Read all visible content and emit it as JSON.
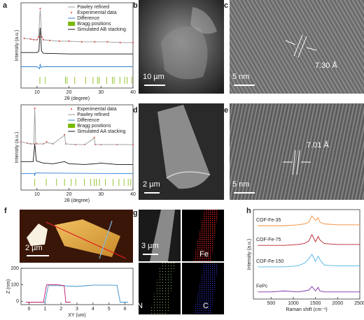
{
  "chart_data": [
    {
      "type": "line",
      "panel": "a",
      "xlim": [
        5,
        40
      ],
      "xticks": [
        10,
        20,
        30,
        40
      ],
      "ylim": [
        0,
        120
      ],
      "xlabel": "2θ (degree)",
      "ylabel": "Intensity (a.u.)",
      "legend": "upper right",
      "series": [
        {
          "name": "Pawley refined",
          "mode": "line",
          "color": "#9a9a9a",
          "x": [
            6,
            8,
            9,
            10,
            10.5,
            11,
            11.5,
            12,
            14,
            17,
            20,
            24,
            28,
            32,
            36,
            40
          ],
          "values": [
            70,
            69,
            68,
            68,
            72,
            110,
            72,
            68,
            67,
            66,
            66,
            65,
            65,
            65,
            64,
            64
          ]
        },
        {
          "name": "Experimental data",
          "mode": "dots",
          "color": "#e3342f",
          "x": [
            6,
            8,
            9,
            10,
            10.5,
            11,
            11.5,
            12,
            14,
            17,
            20,
            24,
            28,
            32,
            36,
            40
          ],
          "values": [
            70,
            69,
            68,
            68,
            72,
            112,
            72,
            68,
            67,
            66,
            66,
            65,
            65,
            65,
            64,
            64
          ]
        },
        {
          "name": "Difference",
          "mode": "line",
          "color": "#2f7fd0",
          "x": [
            5,
            10,
            10.8,
            11,
            11.2,
            12,
            40
          ],
          "values": [
            30,
            30,
            27,
            34,
            29,
            30,
            30
          ]
        },
        {
          "name": "Bragg positions",
          "mode": "ticks",
          "color": "#7ab800",
          "x": [
            10.9,
            12.6,
            18.9,
            19.4,
            21.8,
            25.2,
            27.5,
            28.9,
            29.4,
            31.8,
            33.6,
            34.1,
            35.9,
            37.4,
            38.2,
            39.6
          ]
        },
        {
          "name": "Simulated AB stacking",
          "mode": "line",
          "color": "#111111",
          "x": [
            5,
            10,
            10.6,
            11,
            11.4,
            12,
            20,
            40
          ],
          "values": [
            50,
            50,
            52,
            85,
            52,
            49,
            48,
            48
          ]
        }
      ]
    },
    {
      "type": "line",
      "xlim": [
        5,
        40
      ],
      "xticks": [
        10,
        20,
        30,
        40
      ],
      "ylim": [
        0,
        120
      ],
      "xlabel": "2θ (degree)",
      "ylabel": "Intensity (a.u.)",
      "legend": "upper right",
      "series": [
        {
          "name": "Experimental data",
          "mode": "dots",
          "color": "#e3342f",
          "x": [
            5,
            7,
            8,
            9,
            9.3,
            9.6,
            10,
            12,
            13,
            15,
            18.6,
            19,
            22,
            25,
            27.9,
            28.2,
            30,
            35,
            40
          ],
          "values": [
            68,
            66,
            65,
            65,
            115,
            66,
            65,
            65,
            68,
            65,
            78,
            65,
            64,
            64,
            74,
            64,
            64,
            64,
            64
          ]
        },
        {
          "name": "Pawley refined",
          "mode": "line",
          "color": "#9a9a9a",
          "x": [
            5,
            7,
            8,
            9,
            9.3,
            9.6,
            10,
            12,
            13,
            15,
            18.6,
            19,
            22,
            25,
            27.9,
            28.2,
            30,
            35,
            40
          ],
          "values": [
            68,
            66,
            65,
            65,
            114,
            66,
            65,
            65,
            67,
            65,
            77,
            65,
            64,
            64,
            73,
            64,
            64,
            64,
            64
          ]
        },
        {
          "name": "Difference",
          "mode": "line",
          "color": "#2f7fd0",
          "x": [
            5,
            9.2,
            9.3,
            9.4,
            40
          ],
          "values": [
            23,
            23,
            20,
            24,
            23
          ]
        },
        {
          "name": "Bragg positions",
          "mode": "ticks",
          "color": "#7ab800",
          "x": [
            9.3,
            12.9,
            16.1,
            18.6,
            20.7,
            22.1,
            24.8,
            26.8,
            27.9,
            28.5,
            29.5,
            31.4,
            33.8,
            35.6,
            37.2,
            38.5,
            39.3
          ]
        },
        {
          "name": "Simulated AA stacking",
          "mode": "line",
          "color": "#111111",
          "x": [
            5,
            8.8,
            9.3,
            9.8,
            12,
            15,
            18.6,
            20,
            25,
            28,
            30,
            35,
            40
          ],
          "values": [
            40,
            40,
            65,
            41,
            38,
            37,
            40,
            37,
            36,
            37,
            38,
            36,
            36
          ]
        }
      ]
    },
    {
      "type": "line",
      "xlim": [
        -0.5,
        6.5
      ],
      "xticks": [
        0,
        1,
        2,
        3,
        4,
        5,
        6
      ],
      "ylim": [
        -20,
        200
      ],
      "yticks": [
        0,
        100,
        200
      ],
      "xlabel": "XY (um)",
      "ylabel": "Z (nm)",
      "series": [
        {
          "mode": "line",
          "color": "#3a8fc8",
          "x": [
            -0.2,
            1,
            1.2,
            2,
            3,
            4,
            5,
            5.5,
            5.7,
            6.2
          ],
          "values": [
            -5,
            -5,
            95,
            95,
            90,
            98,
            98,
            97,
            -5,
            -5
          ]
        },
        {
          "mode": "line",
          "color": "#c2186b",
          "x": [
            -0.2,
            0.9,
            1.1,
            1.8,
            2.2,
            2.3,
            2.6
          ],
          "values": [
            -5,
            -5,
            100,
            100,
            95,
            -5,
            -5
          ]
        }
      ]
    },
    {
      "type": "line",
      "panel": "h",
      "xlim": [
        100,
        2500
      ],
      "xticks": [
        500,
        1000,
        1500,
        2000,
        2500
      ],
      "ylim": [
        0,
        100
      ],
      "xlabel": "Raman shift (cm⁻¹)",
      "ylabel": "Intensity (a.u.)",
      "legend": "inline",
      "series": [
        {
          "name": "COF-Fe-35",
          "mode": "line",
          "color": "#f28c38",
          "x": [
            200,
            500,
            800,
            1100,
            1250,
            1350,
            1420,
            1500,
            1560,
            1600,
            1700,
            2000,
            2300,
            2500
          ],
          "values": [
            82,
            82,
            82,
            83,
            84,
            86,
            93,
            88,
            91,
            86,
            84,
            83,
            83,
            83
          ]
        },
        {
          "name": "COF-Fe-75",
          "mode": "line",
          "color": "#b5232a",
          "x": [
            200,
            500,
            800,
            1100,
            1250,
            1350,
            1420,
            1500,
            1560,
            1600,
            1700,
            2000,
            2300,
            2500
          ],
          "values": [
            60,
            60,
            60,
            61,
            62,
            65,
            72,
            64,
            70,
            66,
            62,
            61,
            61,
            61
          ]
        },
        {
          "name": "COF-Fe-150",
          "mode": "line",
          "color": "#4fb3e6",
          "x": [
            200,
            500,
            800,
            1100,
            1250,
            1350,
            1420,
            1500,
            1560,
            1600,
            1700,
            2000,
            2300,
            2500
          ],
          "values": [
            36,
            36,
            36,
            37,
            40,
            45,
            50,
            42,
            48,
            44,
            38,
            37,
            37,
            37
          ]
        },
        {
          "name": "FePc",
          "mode": "line",
          "color": "#7b2fa6",
          "x": [
            200,
            500,
            800,
            1100,
            1250,
            1350,
            1420,
            1500,
            1560,
            1600,
            1700,
            2000,
            2300,
            2500
          ],
          "values": [
            8,
            8,
            9,
            8,
            9,
            10,
            14,
            9,
            13,
            9,
            8,
            8,
            8,
            8
          ]
        }
      ]
    }
  ],
  "images": [
    {
      "panel": "b",
      "scale_bar": "10 µm"
    },
    {
      "panel": "c",
      "scale_bar": "5 nm",
      "annotation": "7.30 Å"
    },
    {
      "panel": "d",
      "scale_bar": "2 µm"
    },
    {
      "panel": "e",
      "scale_bar": "5 nm",
      "annotation": "7.01 Å"
    },
    {
      "panel": "f",
      "scale_bar": "2 µm"
    },
    {
      "panel": "g",
      "scale_bar": "3 µm",
      "maps": [
        "Fe",
        "N",
        "C"
      ]
    }
  ]
}
